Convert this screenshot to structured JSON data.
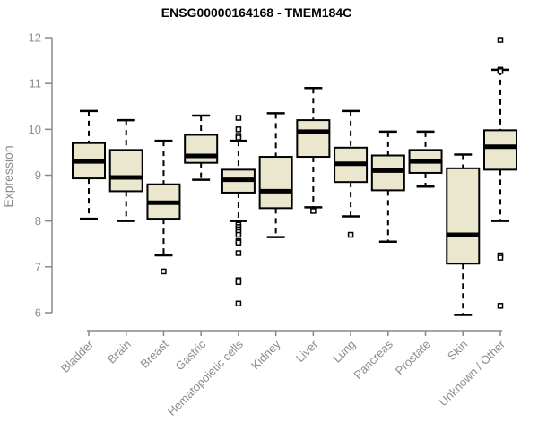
{
  "page": {
    "background": "#ffffff"
  },
  "colors": {
    "box_fill": "#ebe7cf",
    "box_border": "#000000",
    "median_line": "#000000",
    "whisker": "#000000",
    "outlier_stroke": "#000000",
    "outlier_fill": "#ffffff",
    "axis_line": "#888888",
    "axis_text": "#8c8c8c",
    "title_text": "#000000"
  },
  "chart_data": {
    "type": "boxplot",
    "title": "ENSG00000164168 - TMEM184C",
    "xlabel": "",
    "ylabel": "Expression",
    "ylim": [
      6,
      12
    ],
    "yticks": [
      6,
      7,
      8,
      9,
      10,
      11,
      12
    ],
    "grid": false,
    "legend_position": "none",
    "whisker_style": "dashed",
    "categories": [
      "Bladder",
      "Brain",
      "Breast",
      "Gastric",
      "Hematopoietic cells",
      "Kidney",
      "Liver",
      "Lung",
      "Pancreas",
      "Prostate",
      "Skin",
      "Unknown / Other"
    ],
    "series": [
      {
        "name": "Bladder",
        "whisker_low": 8.05,
        "q1": 8.93,
        "median": 9.3,
        "q3": 9.7,
        "whisker_high": 10.4,
        "outliers": []
      },
      {
        "name": "Brain",
        "whisker_low": 8.0,
        "q1": 8.65,
        "median": 8.95,
        "q3": 9.55,
        "whisker_high": 10.2,
        "outliers": []
      },
      {
        "name": "Breast",
        "whisker_low": 7.25,
        "q1": 8.05,
        "median": 8.4,
        "q3": 8.8,
        "whisker_high": 9.75,
        "outliers": [
          6.9
        ]
      },
      {
        "name": "Gastric",
        "whisker_low": 8.9,
        "q1": 9.27,
        "median": 9.42,
        "q3": 9.88,
        "whisker_high": 10.3,
        "outliers": []
      },
      {
        "name": "Hematopoietic cells",
        "whisker_low": 8.0,
        "q1": 8.62,
        "median": 8.9,
        "q3": 9.12,
        "whisker_high": 9.75,
        "outliers": [
          10.25,
          10.0,
          9.86,
          9.82,
          7.92,
          7.87,
          7.82,
          7.76,
          7.7,
          7.56,
          7.53,
          7.3,
          6.71,
          6.67,
          6.2
        ]
      },
      {
        "name": "Kidney",
        "whisker_low": 7.65,
        "q1": 8.28,
        "median": 8.65,
        "q3": 9.4,
        "whisker_high": 10.35,
        "outliers": []
      },
      {
        "name": "Liver",
        "whisker_low": 8.3,
        "q1": 9.4,
        "median": 9.95,
        "q3": 10.2,
        "whisker_high": 10.9,
        "outliers": [
          8.22
        ]
      },
      {
        "name": "Lung",
        "whisker_low": 8.1,
        "q1": 8.85,
        "median": 9.25,
        "q3": 9.6,
        "whisker_high": 10.4,
        "outliers": [
          7.7
        ]
      },
      {
        "name": "Pancreas",
        "whisker_low": 7.55,
        "q1": 8.67,
        "median": 9.1,
        "q3": 9.43,
        "whisker_high": 9.95,
        "outliers": []
      },
      {
        "name": "Prostate",
        "whisker_low": 8.75,
        "q1": 9.05,
        "median": 9.3,
        "q3": 9.55,
        "whisker_high": 9.95,
        "outliers": []
      },
      {
        "name": "Skin",
        "whisker_low": 5.95,
        "q1": 7.07,
        "median": 7.7,
        "q3": 9.15,
        "whisker_high": 9.45,
        "outliers": []
      },
      {
        "name": "Unknown / Other",
        "whisker_low": 8.0,
        "q1": 9.12,
        "median": 9.62,
        "q3": 9.98,
        "whisker_high": 11.3,
        "outliers": [
          11.95,
          11.3,
          11.27,
          7.25,
          7.2,
          6.15
        ]
      }
    ]
  }
}
